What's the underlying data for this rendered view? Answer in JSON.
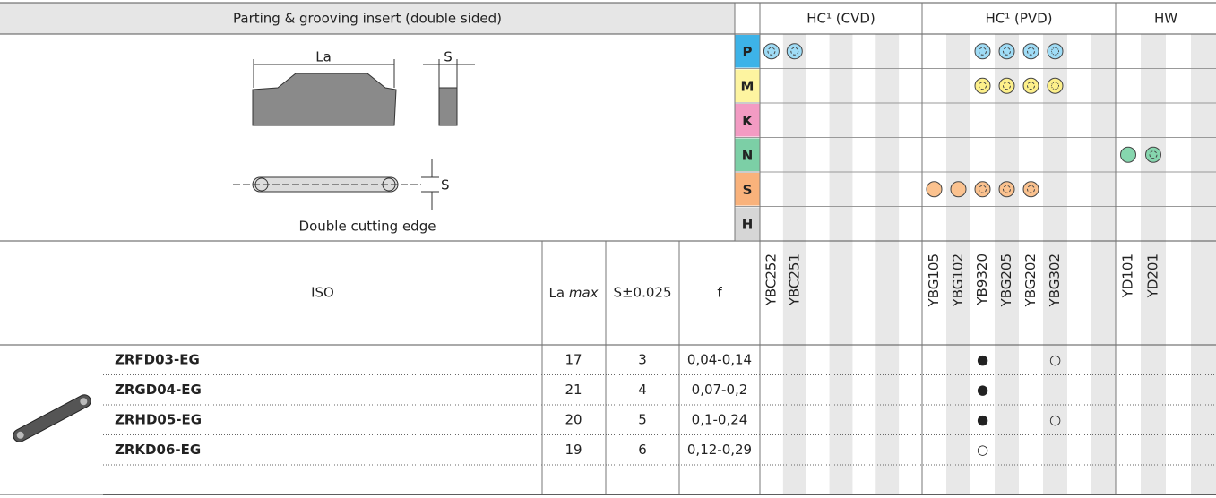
{
  "header": {
    "title": "Parting & grooving insert (double sided)",
    "groups": [
      {
        "name": "HC¹ (CVD)",
        "grades": [
          "YBC252",
          "YBC251",
          null,
          null,
          null,
          null,
          null
        ]
      },
      {
        "name": "HC¹ (PVD)",
        "grades": [
          "YBG105",
          "YBG102",
          "YB9320",
          "YBG205",
          "YBG202",
          "YBG302",
          null,
          null
        ]
      },
      {
        "name": "HW",
        "grades": [
          "YD101",
          "YD201",
          null,
          null
        ]
      }
    ]
  },
  "diagram": {
    "la": "La",
    "s_top": "S",
    "s_side": "S",
    "caption": "Double cutting edge"
  },
  "materials": [
    "P",
    "M",
    "K",
    "N",
    "S",
    "H"
  ],
  "columns": {
    "iso": "ISO",
    "la": "La",
    "la_em": "max",
    "s": "S±0.025",
    "f": "f"
  },
  "rows": [
    {
      "iso": "ZRFD03-EG",
      "la": 17,
      "s": 3,
      "f": "0,04-0,14",
      "marks": [
        null,
        null,
        null,
        null,
        null,
        null,
        null,
        null,
        null,
        "●",
        null,
        null,
        "○",
        null,
        null,
        null,
        null,
        null,
        null
      ]
    },
    {
      "iso": "ZRGD04-EG",
      "la": 21,
      "s": 4,
      "f": "0,07-0,2",
      "marks": [
        null,
        null,
        null,
        null,
        null,
        null,
        null,
        null,
        null,
        "●",
        null,
        null,
        null,
        null,
        null,
        null,
        null,
        null,
        null
      ]
    },
    {
      "iso": "ZRHD05-EG",
      "la": 20,
      "s": 5,
      "f": "0,1-0,24",
      "marks": [
        null,
        null,
        null,
        null,
        null,
        null,
        null,
        null,
        null,
        "●",
        null,
        null,
        "○",
        null,
        null,
        null,
        null,
        null,
        null
      ]
    },
    {
      "iso": "ZRKD06-EG",
      "la": 19,
      "s": 6,
      "f": "0,12-0,29",
      "marks": [
        null,
        null,
        null,
        null,
        null,
        null,
        null,
        null,
        null,
        "○",
        null,
        null,
        null,
        null,
        null,
        null,
        null,
        null,
        null
      ]
    }
  ]
}
